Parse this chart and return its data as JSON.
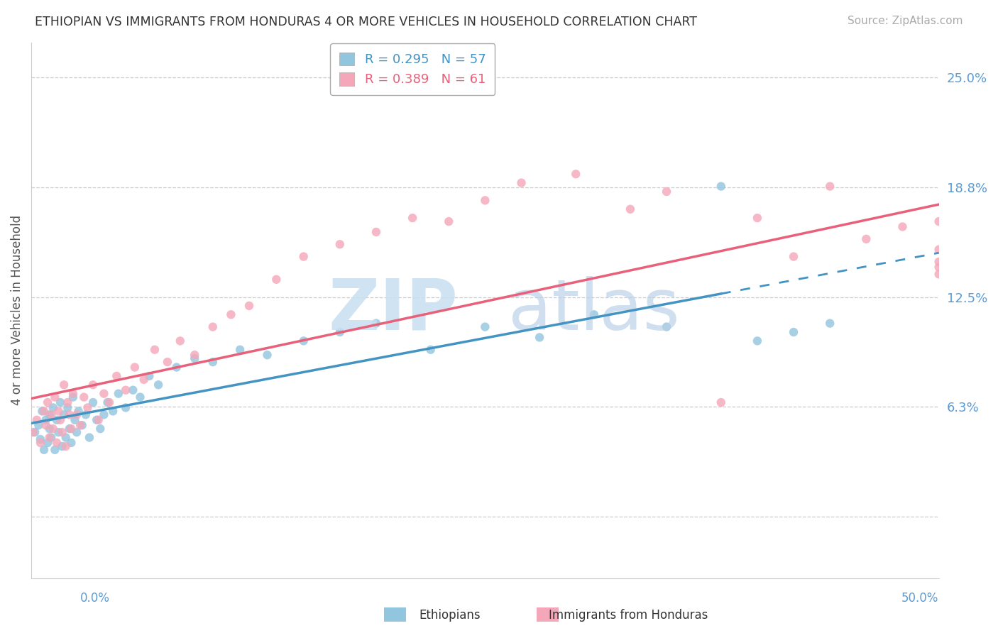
{
  "title": "ETHIOPIAN VS IMMIGRANTS FROM HONDURAS 4 OR MORE VEHICLES IN HOUSEHOLD CORRELATION CHART",
  "source": "Source: ZipAtlas.com",
  "ylabel": "4 or more Vehicles in Household",
  "ytick_vals": [
    0.0,
    0.0625,
    0.125,
    0.1875,
    0.25
  ],
  "ytick_labels": [
    "",
    "6.3%",
    "12.5%",
    "18.8%",
    "25.0%"
  ],
  "xmin": 0.0,
  "xmax": 0.5,
  "ymin": -0.035,
  "ymax": 0.27,
  "legend_r1": "R = 0.295",
  "legend_n1": "N = 57",
  "legend_r2": "R = 0.389",
  "legend_n2": "N = 61",
  "color_blue": "#92c5de",
  "color_blue_line": "#4393c3",
  "color_pink": "#f4a7b9",
  "color_pink_line": "#e8607a",
  "eth_x": [
    0.002,
    0.004,
    0.005,
    0.006,
    0.007,
    0.008,
    0.009,
    0.01,
    0.01,
    0.011,
    0.012,
    0.013,
    0.014,
    0.015,
    0.016,
    0.017,
    0.018,
    0.019,
    0.02,
    0.021,
    0.022,
    0.023,
    0.024,
    0.025,
    0.026,
    0.028,
    0.03,
    0.032,
    0.034,
    0.036,
    0.038,
    0.04,
    0.042,
    0.045,
    0.048,
    0.052,
    0.056,
    0.06,
    0.065,
    0.07,
    0.08,
    0.09,
    0.1,
    0.115,
    0.13,
    0.15,
    0.17,
    0.19,
    0.22,
    0.25,
    0.28,
    0.31,
    0.35,
    0.38,
    0.4,
    0.42,
    0.44
  ],
  "eth_y": [
    0.048,
    0.052,
    0.044,
    0.06,
    0.038,
    0.055,
    0.042,
    0.05,
    0.058,
    0.045,
    0.062,
    0.038,
    0.055,
    0.048,
    0.065,
    0.04,
    0.058,
    0.045,
    0.062,
    0.05,
    0.042,
    0.068,
    0.055,
    0.048,
    0.06,
    0.052,
    0.058,
    0.045,
    0.065,
    0.055,
    0.05,
    0.058,
    0.065,
    0.06,
    0.07,
    0.062,
    0.072,
    0.068,
    0.08,
    0.075,
    0.085,
    0.09,
    0.088,
    0.095,
    0.092,
    0.1,
    0.105,
    0.11,
    0.095,
    0.108,
    0.102,
    0.115,
    0.108,
    0.188,
    0.1,
    0.105,
    0.11
  ],
  "hon_x": [
    0.001,
    0.003,
    0.005,
    0.007,
    0.008,
    0.009,
    0.01,
    0.011,
    0.012,
    0.013,
    0.014,
    0.015,
    0.016,
    0.017,
    0.018,
    0.019,
    0.02,
    0.021,
    0.022,
    0.023,
    0.025,
    0.027,
    0.029,
    0.031,
    0.034,
    0.037,
    0.04,
    0.043,
    0.047,
    0.052,
    0.057,
    0.062,
    0.068,
    0.075,
    0.082,
    0.09,
    0.1,
    0.11,
    0.12,
    0.135,
    0.15,
    0.17,
    0.19,
    0.21,
    0.23,
    0.25,
    0.27,
    0.3,
    0.33,
    0.35,
    0.38,
    0.4,
    0.42,
    0.44,
    0.46,
    0.48,
    0.5,
    0.52,
    0.54,
    0.56,
    0.58
  ],
  "hon_y": [
    0.048,
    0.055,
    0.042,
    0.06,
    0.052,
    0.065,
    0.045,
    0.058,
    0.05,
    0.068,
    0.042,
    0.06,
    0.055,
    0.048,
    0.075,
    0.04,
    0.065,
    0.058,
    0.05,
    0.07,
    0.058,
    0.052,
    0.068,
    0.062,
    0.075,
    0.055,
    0.07,
    0.065,
    0.08,
    0.072,
    0.085,
    0.078,
    0.095,
    0.088,
    0.1,
    0.092,
    0.108,
    0.115,
    0.12,
    0.135,
    0.148,
    0.155,
    0.162,
    0.17,
    0.168,
    0.18,
    0.19,
    0.195,
    0.175,
    0.185,
    0.065,
    0.17,
    0.148,
    0.188,
    0.158,
    0.165,
    0.145,
    0.152,
    0.168,
    0.138,
    0.142
  ],
  "blue_line_solid_end": 0.38,
  "watermark_zip": "ZIP",
  "watermark_atlas": "atlas"
}
